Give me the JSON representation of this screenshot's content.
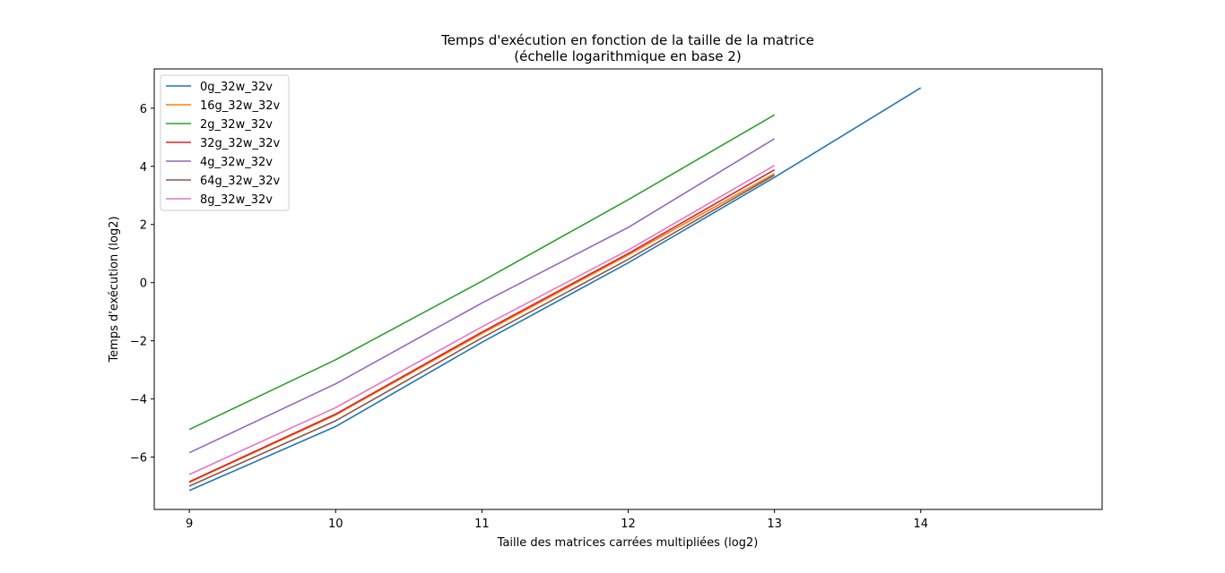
{
  "chart_data": {
    "type": "line",
    "title_line1": "Temps d'exécution en fonction de la taille de la matrice",
    "title_line2": "(échelle logarithmique en base 2)",
    "xlabel": "Taille des matrices carrées multipliées (log2)",
    "ylabel": "Temps d'exécution (log2)",
    "xlim": [
      8.76,
      15.24
    ],
    "ylim": [
      -7.8,
      7.35
    ],
    "xticks": [
      9,
      10,
      11,
      12,
      13,
      14
    ],
    "yticks": [
      -6,
      -4,
      -2,
      0,
      2,
      4,
      6
    ],
    "legend_position": "upper-left",
    "grid": false,
    "series": [
      {
        "name": "0g_32w_32v",
        "color": "#1f77b4",
        "x": [
          9,
          10,
          11,
          12,
          13,
          14
        ],
        "y": [
          -7.15,
          -4.95,
          -2.05,
          0.68,
          3.62,
          6.7
        ]
      },
      {
        "name": "16g_32w_32v",
        "color": "#ff7f0e",
        "x": [
          9,
          10,
          11,
          12,
          13
        ],
        "y": [
          -6.87,
          -4.55,
          -1.75,
          0.95,
          3.75
        ]
      },
      {
        "name": "2g_32w_32v",
        "color": "#2ca02c",
        "x": [
          9,
          10,
          11,
          12,
          13
        ],
        "y": [
          -5.05,
          -2.65,
          0.05,
          2.85,
          5.77
        ]
      },
      {
        "name": "32g_32w_32v",
        "color": "#d62728",
        "x": [
          9,
          10,
          11,
          12,
          13
        ],
        "y": [
          -6.85,
          -4.52,
          -1.7,
          1.0,
          3.88
        ]
      },
      {
        "name": "4g_32w_32v",
        "color": "#9467bd",
        "x": [
          9,
          10,
          11,
          12,
          13
        ],
        "y": [
          -5.85,
          -3.48,
          -0.7,
          1.9,
          4.95
        ]
      },
      {
        "name": "64g_32w_32v",
        "color": "#8c564b",
        "x": [
          9,
          10,
          11,
          12,
          13
        ],
        "y": [
          -7.0,
          -4.75,
          -1.9,
          0.8,
          3.7
        ]
      },
      {
        "name": "8g_32w_32v",
        "color": "#e377c2",
        "x": [
          9,
          10,
          11,
          12,
          13
        ],
        "y": [
          -6.6,
          -4.3,
          -1.52,
          1.12,
          4.03
        ]
      }
    ]
  }
}
